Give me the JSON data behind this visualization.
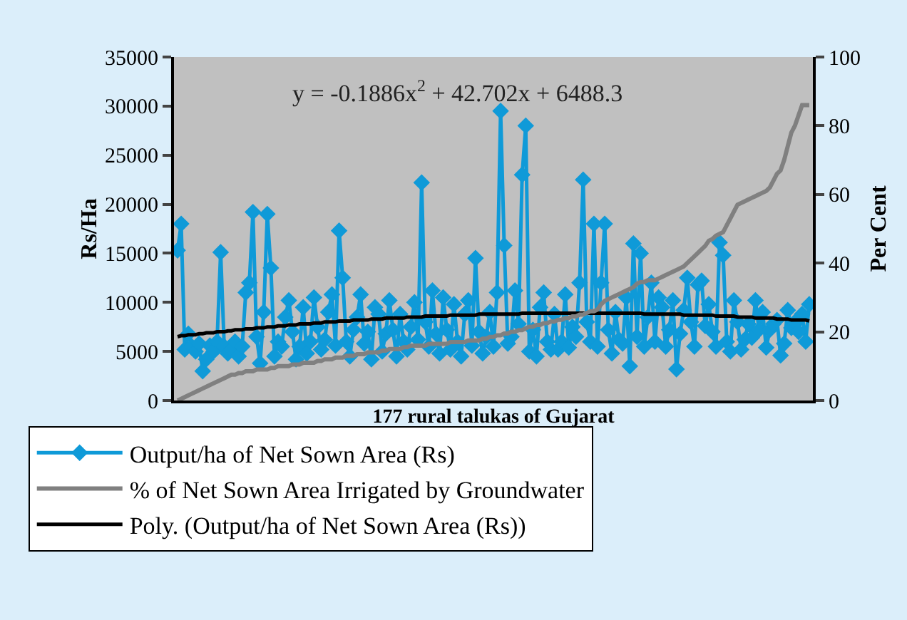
{
  "chart_data": {
    "type": "line",
    "xlabel": "177 rural talukas of Gujarat",
    "ylabel": "Rs/Ha",
    "y2label": "Per Cent",
    "annotations": [
      "y = -0.1886x$^{2}$ + 42.702x + 6488.3"
    ],
    "categories": [
      null,
      null,
      null,
      null,
      null,
      null,
      null,
      null,
      null,
      null,
      null,
      null,
      null,
      null,
      null,
      null,
      null,
      null,
      null,
      null,
      null,
      null,
      null,
      null,
      null,
      null,
      null,
      null,
      null,
      null,
      null,
      null,
      null,
      null,
      null,
      null,
      null,
      null,
      null,
      null,
      null,
      null,
      null,
      null,
      null,
      null,
      null,
      null,
      null,
      null,
      null,
      null,
      null,
      null,
      null,
      null,
      null,
      null,
      null,
      null,
      null,
      null,
      null,
      null,
      null,
      null,
      null,
      null,
      null,
      null,
      null,
      null,
      null,
      null,
      null,
      null,
      null,
      null,
      null,
      null,
      null,
      null,
      null,
      null,
      null,
      null,
      null,
      null,
      null,
      null,
      null,
      null,
      null,
      null,
      null,
      null,
      null,
      null,
      null,
      null,
      null,
      null,
      null,
      null,
      null,
      null,
      null,
      null,
      null,
      null,
      null,
      null,
      null,
      null,
      null,
      null,
      null,
      null,
      null,
      null,
      null,
      null,
      null,
      null,
      null,
      null,
      null,
      null,
      null,
      null,
      null,
      null,
      null,
      null,
      null,
      null,
      null,
      null,
      null,
      null,
      null,
      null,
      null,
      null,
      null,
      null,
      null,
      null,
      null,
      null,
      null,
      null,
      null,
      null,
      null,
      null,
      null,
      null,
      null,
      null,
      null,
      null,
      null,
      null,
      null,
      null,
      null,
      null,
      null,
      null,
      null,
      null,
      null,
      null,
      null,
      null,
      null
    ],
    "ylim": [
      0,
      35000
    ],
    "yticks": [
      0,
      5000,
      10000,
      15000,
      20000,
      25000,
      30000,
      35000
    ],
    "y2lim": [
      0,
      100
    ],
    "y2ticks": [
      0,
      20,
      40,
      60,
      80,
      100
    ],
    "legend": "bottom",
    "grid": false,
    "series": [
      {
        "name": "Output/ha of Net Sown Area (Rs)",
        "color": "#0f9ad8",
        "marker": "diamond",
        "values": [
          15300,
          18000,
          5200,
          6800,
          5500,
          5000,
          5800,
          3000,
          4200,
          5600,
          5000,
          6000,
          15100,
          5500,
          4800,
          5200,
          6000,
          4500,
          5500,
          11000,
          12000,
          19200,
          6500,
          3800,
          9000,
          19000,
          13500,
          4500,
          6000,
          5500,
          8500,
          10200,
          7000,
          4200,
          5500,
          9500,
          4800,
          6000,
          10500,
          7500,
          5200,
          6200,
          9000,
          10800,
          5600,
          17300,
          12500,
          6000,
          4500,
          7200,
          8500,
          10800,
          5800,
          7000,
          4200,
          9500,
          8800,
          5000,
          6800,
          10200,
          7200,
          4500,
          8800,
          6000,
          5200,
          7500,
          10000,
          6200,
          22200,
          8000,
          5500,
          11200,
          6800,
          4800,
          10500,
          7200,
          5200,
          9800,
          6000,
          4500,
          8800,
          10200,
          5600,
          14500,
          7000,
          4800,
          6500,
          9000,
          5500,
          11000,
          29500,
          15800,
          5800,
          6500,
          11200,
          7800,
          23000,
          28000,
          5000,
          7200,
          4500,
          9500,
          11000,
          6000,
          5200,
          8800,
          5200,
          6000,
          10800,
          5400,
          7500,
          6500,
          12000,
          22500,
          8000,
          6000,
          18000,
          5500,
          12000,
          18000,
          7200,
          4800,
          9000,
          6200,
          5800,
          10500,
          3500,
          16000,
          6500,
          15000,
          5500,
          8500,
          12000,
          6000,
          10500,
          9500,
          5500,
          7200,
          10200,
          3200,
          6800,
          9200,
          12500,
          8000,
          5500,
          11800,
          12200,
          7600,
          9800,
          7000,
          5500,
          16100,
          14800,
          6000,
          5000,
          10200,
          8000,
          5200,
          6200,
          7800,
          6400,
          10200,
          7200,
          9000,
          5400,
          7200,
          7800,
          8200,
          4600,
          5800,
          9200,
          7400,
          8000,
          7000,
          8800,
          6000,
          9800
        ]
      },
      {
        "name": "% of Net Sown Area Irrigated by Groundwater",
        "color": "#808080",
        "marker": "none",
        "axis": "y2",
        "values": [
          0,
          0.5,
          1,
          1.5,
          2,
          2.5,
          3,
          3.5,
          4,
          4.5,
          5,
          5.5,
          6,
          6.5,
          7,
          7.5,
          7.5,
          8,
          8,
          8.5,
          8.5,
          8.5,
          9,
          9,
          9,
          9,
          9.5,
          9.5,
          10,
          10,
          10,
          10,
          10.5,
          10.5,
          10.5,
          11,
          11,
          11,
          11,
          11.5,
          11.5,
          12,
          12,
          12,
          12.5,
          12.5,
          12.5,
          13,
          13,
          13,
          13.5,
          13.5,
          13.5,
          14,
          14,
          14,
          14,
          14.5,
          14.5,
          15,
          15,
          15,
          15,
          15.5,
          15.5,
          16,
          16,
          16,
          16,
          16,
          16.5,
          16.5,
          16.5,
          16.5,
          16.5,
          16.5,
          17,
          17,
          17,
          17,
          17,
          17.5,
          17.5,
          17.5,
          17.5,
          18,
          18,
          18.5,
          18.5,
          19,
          19,
          19.5,
          19.5,
          20,
          20,
          20.5,
          20.5,
          21,
          21.5,
          21.5,
          22,
          22,
          22.5,
          22.5,
          23,
          23,
          23.5,
          23.5,
          24,
          24,
          24.5,
          24.5,
          25,
          25,
          25.5,
          26,
          26,
          26.5,
          28,
          29,
          29.5,
          30,
          30.5,
          31,
          31.5,
          32,
          32.5,
          33,
          34,
          34.5,
          34.5,
          35,
          35,
          35,
          35.5,
          36,
          36.5,
          37,
          37.5,
          38,
          38.5,
          39,
          40,
          41,
          42,
          43,
          44,
          45,
          46.5,
          47,
          48,
          48.5,
          49,
          51,
          53,
          55,
          57,
          57.5,
          58,
          58.5,
          59,
          59.5,
          60,
          60.5,
          61,
          62,
          64,
          66,
          67,
          70,
          74,
          78,
          80,
          83,
          86,
          86,
          86
        ]
      },
      {
        "name": "Poly. (Output/ha of Net Sown Area (Rs))",
        "color": "#000000",
        "marker": "none",
        "values": [
          6500,
          6600,
          6600,
          6700,
          6700,
          6700,
          6800,
          6800,
          6900,
          6900,
          6900,
          7000,
          7000,
          7000,
          7100,
          7100,
          7200,
          7200,
          7200,
          7300,
          7300,
          7300,
          7400,
          7400,
          7400,
          7500,
          7500,
          7500,
          7600,
          7600,
          7600,
          7700,
          7700,
          7700,
          7800,
          7800,
          7800,
          7800,
          7900,
          7900,
          7900,
          8000,
          8000,
          8000,
          8000,
          8100,
          8100,
          8100,
          8100,
          8200,
          8200,
          8200,
          8200,
          8200,
          8300,
          8300,
          8300,
          8300,
          8400,
          8400,
          8400,
          8400,
          8400,
          8400,
          8500,
          8500,
          8500,
          8500,
          8500,
          8600,
          8600,
          8600,
          8600,
          8600,
          8600,
          8600,
          8700,
          8700,
          8700,
          8700,
          8700,
          8700,
          8700,
          8700,
          8800,
          8800,
          8800,
          8800,
          8800,
          8800,
          8800,
          8800,
          8800,
          8800,
          8800,
          8800,
          8900,
          8900,
          8900,
          8900,
          8900,
          8900,
          8900,
          8900,
          8900,
          8900,
          8900,
          8900,
          8900,
          8900,
          8900,
          8900,
          8900,
          8900,
          8900,
          8900,
          8900,
          8900,
          8900,
          8900,
          8900,
          8900,
          8900,
          8900,
          8900,
          8900,
          8900,
          8900,
          8900,
          8900,
          8800,
          8800,
          8800,
          8800,
          8800,
          8800,
          8800,
          8800,
          8800,
          8800,
          8800,
          8700,
          8700,
          8700,
          8700,
          8700,
          8700,
          8700,
          8700,
          8700,
          8600,
          8600,
          8600,
          8600,
          8600,
          8600,
          8500,
          8500,
          8500,
          8500,
          8500,
          8400,
          8400,
          8400,
          8400,
          8400,
          8400,
          8300,
          8300,
          8300,
          8300,
          8200,
          8200,
          8200,
          8200,
          8200,
          8100
        ]
      }
    ]
  }
}
